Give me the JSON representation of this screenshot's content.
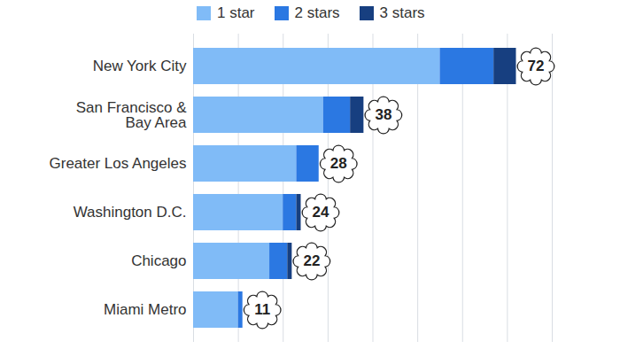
{
  "chart_data": {
    "type": "bar",
    "orientation": "horizontal",
    "stacked": true,
    "categories": [
      "New York City",
      "San Francisco &\nBay Area",
      "Greater Los Angeles",
      "Washington D.C.",
      "Chicago",
      "Miami Metro"
    ],
    "series": [
      {
        "name": "1 star",
        "color": "#80bbf7",
        "values": [
          55,
          29,
          23,
          20,
          17,
          10
        ]
      },
      {
        "name": "2 stars",
        "color": "#2b78e2",
        "values": [
          12,
          6,
          5,
          3,
          4,
          1
        ]
      },
      {
        "name": "3 stars",
        "color": "#173f80",
        "values": [
          5,
          3,
          0,
          1,
          1,
          0
        ]
      }
    ],
    "totals": [
      72,
      38,
      28,
      24,
      22,
      11
    ],
    "xlim": [
      0,
      80
    ],
    "xticks": [
      0,
      10,
      20,
      30,
      40,
      50,
      60,
      70,
      80
    ],
    "grid": true,
    "legend": "top",
    "tick_labels": "y"
  }
}
